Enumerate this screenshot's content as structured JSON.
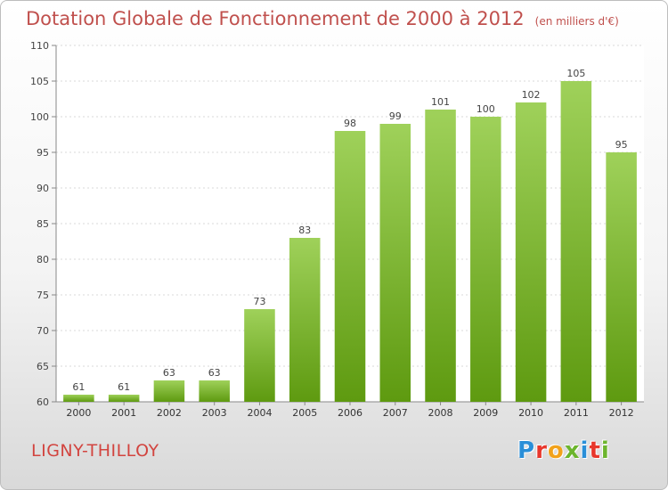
{
  "header": {
    "title": "Dotation Globale de Fonctionnement de 2000 à 2012",
    "subtitle": "(en milliers d'€)"
  },
  "footer": {
    "commune": "LIGNY-THILLOY",
    "logo": "Proxiti"
  },
  "colors": {
    "bar_top": "#9fd15a",
    "bar_bottom": "#5e9a10",
    "title": "#c0504d",
    "logo_letters": [
      "#2a8fd8",
      "#e8372c",
      "#f2a21b",
      "#6cb52d",
      "#2a8fd8",
      "#e8372c",
      "#6cb52d"
    ]
  },
  "chart_data": {
    "type": "bar",
    "title": "Dotation Globale de Fonctionnement de 2000 à 2012",
    "subtitle": "(en milliers d'€)",
    "categories": [
      "2000",
      "2001",
      "2002",
      "2003",
      "2004",
      "2005",
      "2006",
      "2007",
      "2008",
      "2009",
      "2010",
      "2011",
      "2012"
    ],
    "values": [
      61,
      61,
      63,
      63,
      73,
      83,
      98,
      99,
      101,
      100,
      102,
      105,
      95
    ],
    "ylim": [
      60,
      110
    ],
    "yticks": [
      60,
      65,
      70,
      75,
      80,
      85,
      90,
      95,
      100,
      105,
      110
    ],
    "grid": true,
    "data_labels": true
  }
}
